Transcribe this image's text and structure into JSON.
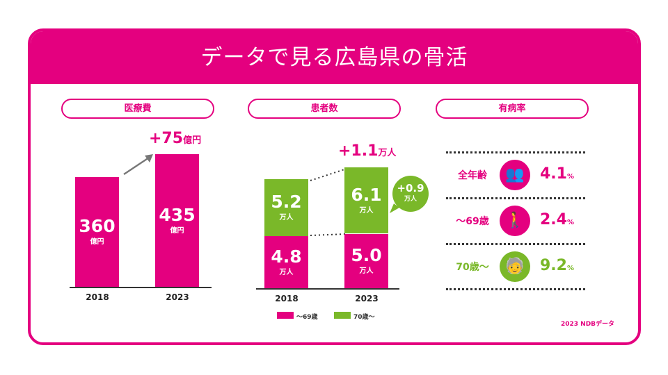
{
  "title": "データで見る広島県の骨活",
  "colors": {
    "pink": "#e4007f",
    "green": "#7ab829"
  },
  "sections": [
    "医療費",
    "患者数",
    "有病率"
  ],
  "chart_data": [
    {
      "type": "bar",
      "title": "医療費",
      "categories": [
        "2018",
        "2023"
      ],
      "values": [
        360,
        435
      ],
      "unit": "億円",
      "value_labels": [
        "360",
        "435"
      ],
      "annotation": "+75",
      "annotation_unit": "億円"
    },
    {
      "type": "bar",
      "stacked": true,
      "title": "患者数",
      "categories": [
        "2018",
        "2023"
      ],
      "unit": "万人",
      "series": [
        {
          "name": "～69歳",
          "color": "#e4007f",
          "values": [
            4.8,
            5.0
          ],
          "labels": [
            "4.8",
            "5.0"
          ]
        },
        {
          "name": "70歳～",
          "color": "#7ab829",
          "values": [
            5.2,
            6.1
          ],
          "labels": [
            "5.2",
            "6.1"
          ]
        }
      ],
      "annotation": "+1.1",
      "annotation_unit": "万人",
      "bubble": "+0.9",
      "bubble_unit": "万人"
    },
    {
      "type": "table",
      "title": "有病率",
      "rows": [
        {
          "label": "全年齢",
          "value": "4.1",
          "unit": "%",
          "color": "#e4007f",
          "icon": "group-people-icon"
        },
        {
          "label": "～69歳",
          "value": "2.4",
          "unit": "%",
          "color": "#e4007f",
          "icon": "walking-person-icon"
        },
        {
          "label": "70歳～",
          "value": "9.2",
          "unit": "%",
          "color": "#7ab829",
          "icon": "elderly-cane-icon"
        }
      ]
    }
  ],
  "source": "2023 NDBデータ"
}
